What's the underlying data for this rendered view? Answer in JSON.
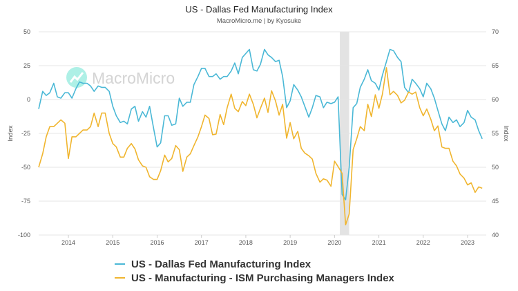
{
  "chart_data": {
    "type": "line",
    "title": "US - Dallas Fed Manufacturing Index",
    "subtitle": "MacroMicro.me | by Kyosuke",
    "watermark": "MacroMicro",
    "x_ticks": [
      "2014",
      "2015",
      "2016",
      "2017",
      "2018",
      "2019",
      "2020",
      "2021",
      "2022",
      "2023"
    ],
    "xlim": [
      2013.33,
      2023.42
    ],
    "shaded_region": {
      "from": 2020.12,
      "to": 2020.33,
      "color": "#e3e3e3"
    },
    "left_axis": {
      "label": "Index",
      "ticks": [
        50,
        25,
        0,
        -25,
        -50,
        -75,
        -100
      ],
      "ylim": [
        -100,
        50
      ]
    },
    "right_axis": {
      "label": "Index",
      "ticks": [
        70,
        65,
        60,
        55,
        50,
        45,
        40
      ],
      "ylim": [
        40,
        70
      ]
    },
    "series": [
      {
        "name": "US - Dallas Fed Manufacturing Index",
        "axis": "left",
        "color": "#4ab8d6",
        "values": [
          [
            2013.33,
            -7
          ],
          [
            2013.42,
            6
          ],
          [
            2013.5,
            3
          ],
          [
            2013.58,
            5
          ],
          [
            2013.67,
            12
          ],
          [
            2013.75,
            2
          ],
          [
            2013.83,
            1
          ],
          [
            2013.92,
            5
          ],
          [
            2014.0,
            5
          ],
          [
            2014.08,
            1
          ],
          [
            2014.17,
            8
          ],
          [
            2014.25,
            13
          ],
          [
            2014.33,
            12
          ],
          [
            2014.42,
            12
          ],
          [
            2014.5,
            10
          ],
          [
            2014.58,
            6
          ],
          [
            2014.67,
            10
          ],
          [
            2014.75,
            9
          ],
          [
            2014.83,
            9
          ],
          [
            2014.92,
            6
          ],
          [
            2015.0,
            -5
          ],
          [
            2015.08,
            -12
          ],
          [
            2015.17,
            -17
          ],
          [
            2015.25,
            -16
          ],
          [
            2015.33,
            -18
          ],
          [
            2015.42,
            -7
          ],
          [
            2015.5,
            -5
          ],
          [
            2015.58,
            -16
          ],
          [
            2015.67,
            -9
          ],
          [
            2015.75,
            -13
          ],
          [
            2015.83,
            -5
          ],
          [
            2015.92,
            -21
          ],
          [
            2016.0,
            -35
          ],
          [
            2016.08,
            -32
          ],
          [
            2016.17,
            -12
          ],
          [
            2016.25,
            -12
          ],
          [
            2016.33,
            -19
          ],
          [
            2016.42,
            -18
          ],
          [
            2016.5,
            1
          ],
          [
            2016.58,
            -5
          ],
          [
            2016.67,
            -2
          ],
          [
            2016.75,
            -2
          ],
          [
            2016.83,
            11
          ],
          [
            2016.92,
            17
          ],
          [
            2017.0,
            23
          ],
          [
            2017.08,
            23
          ],
          [
            2017.17,
            17
          ],
          [
            2017.25,
            17
          ],
          [
            2017.33,
            19
          ],
          [
            2017.42,
            15
          ],
          [
            2017.5,
            17
          ],
          [
            2017.58,
            17
          ],
          [
            2017.67,
            21
          ],
          [
            2017.75,
            27
          ],
          [
            2017.83,
            19
          ],
          [
            2017.92,
            31
          ],
          [
            2018.0,
            34
          ],
          [
            2018.08,
            37
          ],
          [
            2018.17,
            22
          ],
          [
            2018.25,
            21
          ],
          [
            2018.33,
            26
          ],
          [
            2018.42,
            37
          ],
          [
            2018.5,
            33
          ],
          [
            2018.58,
            31
          ],
          [
            2018.67,
            28
          ],
          [
            2018.75,
            29
          ],
          [
            2018.83,
            17
          ],
          [
            2018.92,
            -6
          ],
          [
            2019.0,
            -1
          ],
          [
            2019.08,
            11
          ],
          [
            2019.17,
            7
          ],
          [
            2019.25,
            2
          ],
          [
            2019.33,
            -5
          ],
          [
            2019.42,
            -13
          ],
          [
            2019.5,
            -6
          ],
          [
            2019.58,
            3
          ],
          [
            2019.67,
            2
          ],
          [
            2019.75,
            -6
          ],
          [
            2019.83,
            -2
          ],
          [
            2019.92,
            -3
          ],
          [
            2020.0,
            -2
          ],
          [
            2020.08,
            2
          ],
          [
            2020.17,
            -70
          ],
          [
            2020.25,
            -74
          ],
          [
            2020.33,
            -50
          ],
          [
            2020.42,
            -6
          ],
          [
            2020.5,
            -3
          ],
          [
            2020.58,
            9
          ],
          [
            2020.67,
            15
          ],
          [
            2020.75,
            22
          ],
          [
            2020.83,
            14
          ],
          [
            2020.92,
            12
          ],
          [
            2021.0,
            7
          ],
          [
            2021.08,
            18
          ],
          [
            2021.17,
            28
          ],
          [
            2021.25,
            37
          ],
          [
            2021.33,
            36
          ],
          [
            2021.42,
            31
          ],
          [
            2021.5,
            28
          ],
          [
            2021.58,
            9
          ],
          [
            2021.67,
            5
          ],
          [
            2021.75,
            15
          ],
          [
            2021.83,
            12
          ],
          [
            2021.92,
            8
          ],
          [
            2022.0,
            2
          ],
          [
            2022.08,
            12
          ],
          [
            2022.17,
            8
          ],
          [
            2022.25,
            1
          ],
          [
            2022.33,
            -8
          ],
          [
            2022.42,
            -18
          ],
          [
            2022.5,
            -23
          ],
          [
            2022.58,
            -13
          ],
          [
            2022.67,
            -17
          ],
          [
            2022.75,
            -15
          ],
          [
            2022.83,
            -20
          ],
          [
            2022.92,
            -17
          ],
          [
            2023.0,
            -8
          ],
          [
            2023.08,
            -13
          ],
          [
            2023.17,
            -15
          ],
          [
            2023.25,
            -23
          ],
          [
            2023.33,
            -29
          ]
        ]
      },
      {
        "name": "US - Manufacturing - ISM Purchasing Managers Index",
        "axis": "right",
        "color": "#f0b52e",
        "values": [
          [
            2013.33,
            50
          ],
          [
            2013.42,
            52
          ],
          [
            2013.5,
            54.5
          ],
          [
            2013.58,
            56
          ],
          [
            2013.67,
            56
          ],
          [
            2013.75,
            56.5
          ],
          [
            2013.83,
            57
          ],
          [
            2013.92,
            56.5
          ],
          [
            2014.0,
            51.3
          ],
          [
            2014.08,
            54.5
          ],
          [
            2014.17,
            54.5
          ],
          [
            2014.25,
            55
          ],
          [
            2014.33,
            55.5
          ],
          [
            2014.42,
            55.5
          ],
          [
            2014.5,
            56
          ],
          [
            2014.58,
            58
          ],
          [
            2014.67,
            56
          ],
          [
            2014.75,
            58
          ],
          [
            2014.83,
            58
          ],
          [
            2014.92,
            55
          ],
          [
            2015.0,
            53.5
          ],
          [
            2015.08,
            53
          ],
          [
            2015.17,
            51.5
          ],
          [
            2015.25,
            51.5
          ],
          [
            2015.33,
            52.8
          ],
          [
            2015.42,
            53.5
          ],
          [
            2015.5,
            52.7
          ],
          [
            2015.58,
            51.1
          ],
          [
            2015.67,
            50.2
          ],
          [
            2015.75,
            50
          ],
          [
            2015.83,
            48.6
          ],
          [
            2015.92,
            48.2
          ],
          [
            2016.0,
            48.2
          ],
          [
            2016.08,
            49.5
          ],
          [
            2016.17,
            51.8
          ],
          [
            2016.25,
            50.8
          ],
          [
            2016.33,
            51.3
          ],
          [
            2016.42,
            53.2
          ],
          [
            2016.5,
            52.6
          ],
          [
            2016.58,
            49.4
          ],
          [
            2016.67,
            51.5
          ],
          [
            2016.75,
            52
          ],
          [
            2016.83,
            53.2
          ],
          [
            2016.92,
            54.5
          ],
          [
            2017.0,
            56
          ],
          [
            2017.08,
            57.7
          ],
          [
            2017.17,
            57.2
          ],
          [
            2017.25,
            54.8
          ],
          [
            2017.33,
            54.9
          ],
          [
            2017.42,
            57.8
          ],
          [
            2017.5,
            56.3
          ],
          [
            2017.58,
            58.8
          ],
          [
            2017.67,
            60.8
          ],
          [
            2017.75,
            58.7
          ],
          [
            2017.83,
            58.2
          ],
          [
            2017.92,
            59.7
          ],
          [
            2018.0,
            59.1
          ],
          [
            2018.08,
            60.8
          ],
          [
            2018.17,
            59.3
          ],
          [
            2018.25,
            57.3
          ],
          [
            2018.33,
            58.7
          ],
          [
            2018.42,
            60.2
          ],
          [
            2018.5,
            58.1
          ],
          [
            2018.58,
            61.3
          ],
          [
            2018.67,
            59.8
          ],
          [
            2018.75,
            57.7
          ],
          [
            2018.83,
            59.3
          ],
          [
            2018.92,
            54.3
          ],
          [
            2019.0,
            56.6
          ],
          [
            2019.08,
            54.2
          ],
          [
            2019.17,
            55.3
          ],
          [
            2019.25,
            52.8
          ],
          [
            2019.33,
            52.1
          ],
          [
            2019.42,
            51.7
          ],
          [
            2019.5,
            51.2
          ],
          [
            2019.58,
            49.1
          ],
          [
            2019.67,
            47.8
          ],
          [
            2019.75,
            48.3
          ],
          [
            2019.83,
            48.1
          ],
          [
            2019.92,
            47.2
          ],
          [
            2020.0,
            50.9
          ],
          [
            2020.08,
            50.1
          ],
          [
            2020.17,
            49.1
          ],
          [
            2020.25,
            41.5
          ],
          [
            2020.33,
            43.1
          ],
          [
            2020.42,
            52.6
          ],
          [
            2020.5,
            54.2
          ],
          [
            2020.58,
            56
          ],
          [
            2020.67,
            55.4
          ],
          [
            2020.75,
            59.3
          ],
          [
            2020.83,
            57.5
          ],
          [
            2020.92,
            60.7
          ],
          [
            2021.0,
            58.7
          ],
          [
            2021.08,
            60.8
          ],
          [
            2021.17,
            64.7
          ],
          [
            2021.25,
            60.7
          ],
          [
            2021.33,
            61.2
          ],
          [
            2021.42,
            60.6
          ],
          [
            2021.5,
            59.5
          ],
          [
            2021.58,
            59.9
          ],
          [
            2021.67,
            61.1
          ],
          [
            2021.75,
            60.8
          ],
          [
            2021.83,
            61.1
          ],
          [
            2021.92,
            58.8
          ],
          [
            2022.0,
            57.6
          ],
          [
            2022.08,
            58.6
          ],
          [
            2022.17,
            57.1
          ],
          [
            2022.25,
            55.4
          ],
          [
            2022.33,
            56.1
          ],
          [
            2022.42,
            53
          ],
          [
            2022.5,
            52.8
          ],
          [
            2022.58,
            52.8
          ],
          [
            2022.67,
            50.9
          ],
          [
            2022.75,
            50.2
          ],
          [
            2022.83,
            49
          ],
          [
            2022.92,
            48.4
          ],
          [
            2023.0,
            47.4
          ],
          [
            2023.08,
            47.7
          ],
          [
            2023.17,
            46.3
          ],
          [
            2023.25,
            47.1
          ],
          [
            2023.33,
            46.9
          ]
        ]
      }
    ]
  }
}
